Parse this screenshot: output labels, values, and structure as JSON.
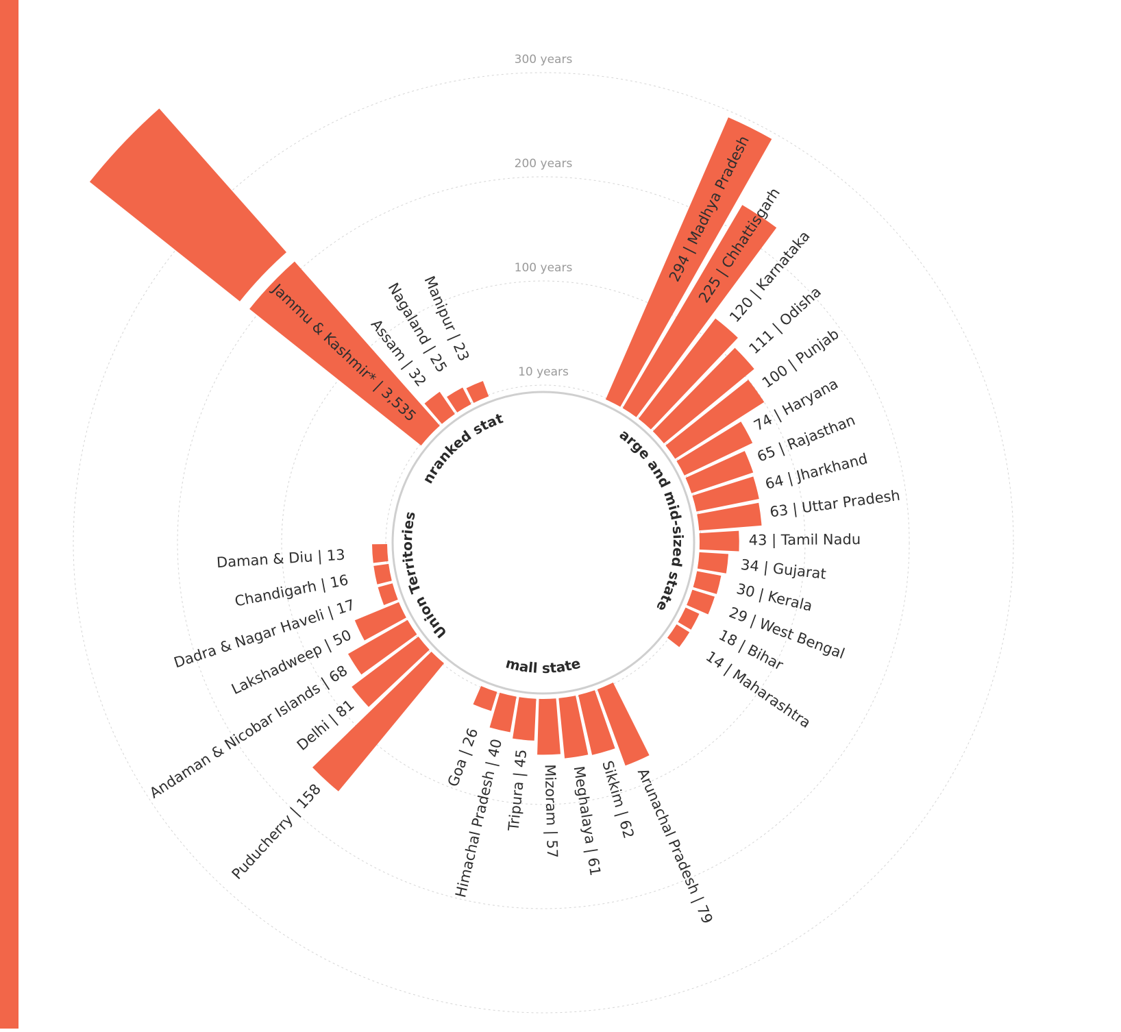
{
  "colors": {
    "accent": "#f26649",
    "grid": "#d4d4d4",
    "inner_circle": "#cfcfcf",
    "text": "#2e2e2e",
    "muted": "#9a9a9a"
  },
  "chart_data": {
    "type": "bar",
    "variant": "radial",
    "title": "",
    "xlabel": "",
    "ylabel": "",
    "grid": true,
    "ring_labels": [
      "10 years",
      "100 years",
      "200 years",
      "300 years"
    ],
    "ring_values": [
      10,
      100,
      200,
      300
    ],
    "groups": [
      {
        "name": "Large and mid-sized states",
        "items": [
          {
            "label": "294 | Madhya Pradesh",
            "value": 294
          },
          {
            "label": "225 | Chhattisgarh",
            "value": 225
          },
          {
            "label": "120 | Karnataka",
            "value": 120
          },
          {
            "label": "111 | Odisha",
            "value": 111
          },
          {
            "label": "100 | Punjab",
            "value": 100
          },
          {
            "label": "74 | Haryana",
            "value": 74
          },
          {
            "label": "65 | Rajasthan",
            "value": 65
          },
          {
            "label": "64 | Jharkhand",
            "value": 64
          },
          {
            "label": "63 | Uttar Pradesh",
            "value": 63
          },
          {
            "label": "43 | Tamil Nadu",
            "value": 43
          },
          {
            "label": "34 | Gujarat",
            "value": 34
          },
          {
            "label": "30 | Kerala",
            "value": 30
          },
          {
            "label": "29 | West Bengal",
            "value": 29
          },
          {
            "label": "18 | Bihar",
            "value": 18
          },
          {
            "label": "14 | Maharashtra",
            "value": 14
          }
        ]
      },
      {
        "name": "Small states",
        "items": [
          {
            "label": "Arunachal Pradesh | 79",
            "value": 79
          },
          {
            "label": "Sikkim | 62",
            "value": 62
          },
          {
            "label": "Meghalaya | 61",
            "value": 61
          },
          {
            "label": "Mizoram | 57",
            "value": 57
          },
          {
            "label": "Tripura | 45",
            "value": 45
          },
          {
            "label": "Himachal Pradesh | 40",
            "value": 40
          },
          {
            "label": "Goa | 26",
            "value": 26
          }
        ]
      },
      {
        "name": "Union Territories",
        "items": [
          {
            "label": "Puducherry | 158",
            "value": 158
          },
          {
            "label": "Delhi | 81",
            "value": 81
          },
          {
            "label": "Andaman & Nicobar Islands | 68",
            "value": 68
          },
          {
            "label": "Lakshadweep | 50",
            "value": 50
          },
          {
            "label": "Dadra & Nagar Haveli | 17",
            "value": 17
          },
          {
            "label": "Chandigarh | 16",
            "value": 16
          },
          {
            "label": "Daman & Diu | 13",
            "value": 13
          }
        ]
      },
      {
        "name": "Unranked states",
        "items": [
          {
            "label": "Jammu & Kashmir* | 3,535",
            "value": 3535,
            "axis_break": true
          },
          {
            "label": "Assam | 32",
            "value": 32
          },
          {
            "label": "Nagaland | 25",
            "value": 25
          },
          {
            "label": "Manipur | 23",
            "value": 23
          }
        ]
      }
    ]
  }
}
